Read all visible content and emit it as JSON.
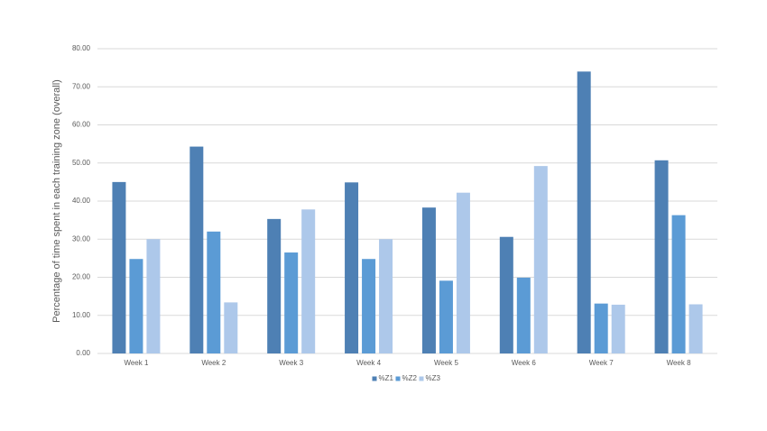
{
  "chart_data": {
    "type": "bar",
    "y_label": "Percentage of time spent in each training zone (overall)",
    "categories": [
      "Week 1",
      "Week 2",
      "Week 3",
      "Week 4",
      "Week 5",
      "Week 6",
      "Week 7",
      "Week 8"
    ],
    "series": [
      {
        "name": "%Z1",
        "color": "#4e80b4",
        "values": [
          45.0,
          54.3,
          35.3,
          44.9,
          38.3,
          30.6,
          74.0,
          50.7
        ]
      },
      {
        "name": "%Z2",
        "color": "#5b9bd5",
        "values": [
          24.8,
          32.0,
          26.5,
          24.8,
          19.1,
          19.9,
          13.1,
          36.3
        ]
      },
      {
        "name": "%Z3",
        "color": "#adc8ea",
        "values": [
          30.0,
          13.4,
          37.8,
          30.0,
          42.2,
          49.2,
          12.8,
          12.9
        ]
      }
    ],
    "ylim": [
      0,
      80
    ],
    "yticks": [
      {
        "value": 0,
        "label": "0.00"
      },
      {
        "value": 10,
        "label": "10.00"
      },
      {
        "value": 20,
        "label": "20.00"
      },
      {
        "value": 30,
        "label": "30.00"
      },
      {
        "value": 40,
        "label": "40.00"
      },
      {
        "value": 50,
        "label": "50.00"
      },
      {
        "value": 60,
        "label": "60.00"
      },
      {
        "value": 70,
        "label": "70.00"
      },
      {
        "value": 80,
        "label": "80.00"
      }
    ],
    "grid": true,
    "legend": "bottom"
  }
}
